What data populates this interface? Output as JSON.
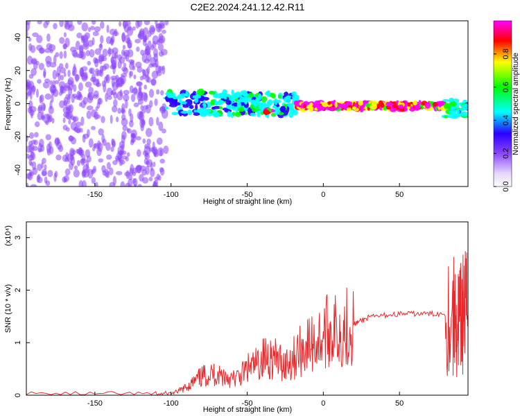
{
  "title": "C2E2.2024.241.12.42.R11",
  "chart_data": [
    {
      "type": "heatmap",
      "xlabel": "Height of straight line (km)",
      "ylabel": "Frequency (Hz)",
      "xlim": [
        -195,
        95
      ],
      "ylim": [
        -50,
        50
      ],
      "xticks": [
        -150,
        -100,
        -50,
        0,
        50
      ],
      "yticks": [
        -40,
        -20,
        0,
        20,
        40
      ],
      "colorbar": {
        "label": "Normalized spectral amplitude",
        "ticks": [
          "0.0",
          "0.2",
          "0.4",
          "0.6",
          "0.8"
        ],
        "range": [
          0,
          1
        ],
        "colors": [
          "#e4d6fa",
          "#8c46ff",
          "#2a00ff",
          "#00ffff",
          "#00ff00",
          "#ffff00",
          "#ff0000",
          "#ff00ff"
        ]
      },
      "bands": [
        {
          "x_start": -195,
          "x_end": -103,
          "y_center": 0,
          "y_spread": 50,
          "amplitude": 0.15,
          "description_level": "scattered"
        },
        {
          "x_start": -103,
          "x_end": -18,
          "y_center": 0,
          "y_spread": 7,
          "amplitude": 0.45
        },
        {
          "x_start": -38,
          "x_end": -34,
          "y_center": -5,
          "y_spread": 1,
          "amplitude": 1.0
        },
        {
          "x_start": -18,
          "x_end": 80,
          "y_center": -1.5,
          "y_spread": 2,
          "amplitude": 1.0
        },
        {
          "x_start": 80,
          "x_end": 95,
          "y_center": -3,
          "y_spread": 5,
          "amplitude": 0.5
        }
      ]
    },
    {
      "type": "line",
      "xlabel": "Height of straight line (km)",
      "ylabel": "SNR (10 * v/v)",
      "y_multiplier": "(x10⁴)",
      "xlim": [
        -195,
        95
      ],
      "ylim": [
        0,
        3.3
      ],
      "xticks": [
        -150,
        -100,
        -50,
        0,
        50
      ],
      "yticks": [
        0,
        1,
        2,
        3
      ],
      "line_color": "#e8282b",
      "series": [
        {
          "x": [
            -195,
            -150,
            -110,
            -100,
            -95,
            -90,
            -85,
            -80,
            -75,
            -70,
            -65,
            -60,
            -55,
            -50,
            -45,
            -40,
            -35,
            -30,
            -25,
            -20,
            -15,
            -10,
            -5,
            0,
            5,
            10,
            15,
            20,
            25,
            30,
            40,
            50,
            60,
            70,
            80,
            85,
            88,
            90,
            92,
            95
          ],
          "y": [
            0.02,
            0.02,
            0.02,
            0.03,
            0.08,
            0.15,
            0.25,
            0.35,
            0.4,
            0.4,
            0.38,
            0.3,
            0.35,
            0.5,
            0.55,
            0.7,
            0.75,
            0.65,
            0.6,
            0.7,
            0.85,
            0.95,
            1.0,
            1.15,
            1.25,
            1.2,
            1.3,
            1.35,
            1.42,
            1.48,
            1.52,
            1.55,
            1.55,
            1.55,
            1.55,
            1.5,
            1.4,
            1.3,
            1.6,
            1.6
          ]
        }
      ]
    }
  ]
}
